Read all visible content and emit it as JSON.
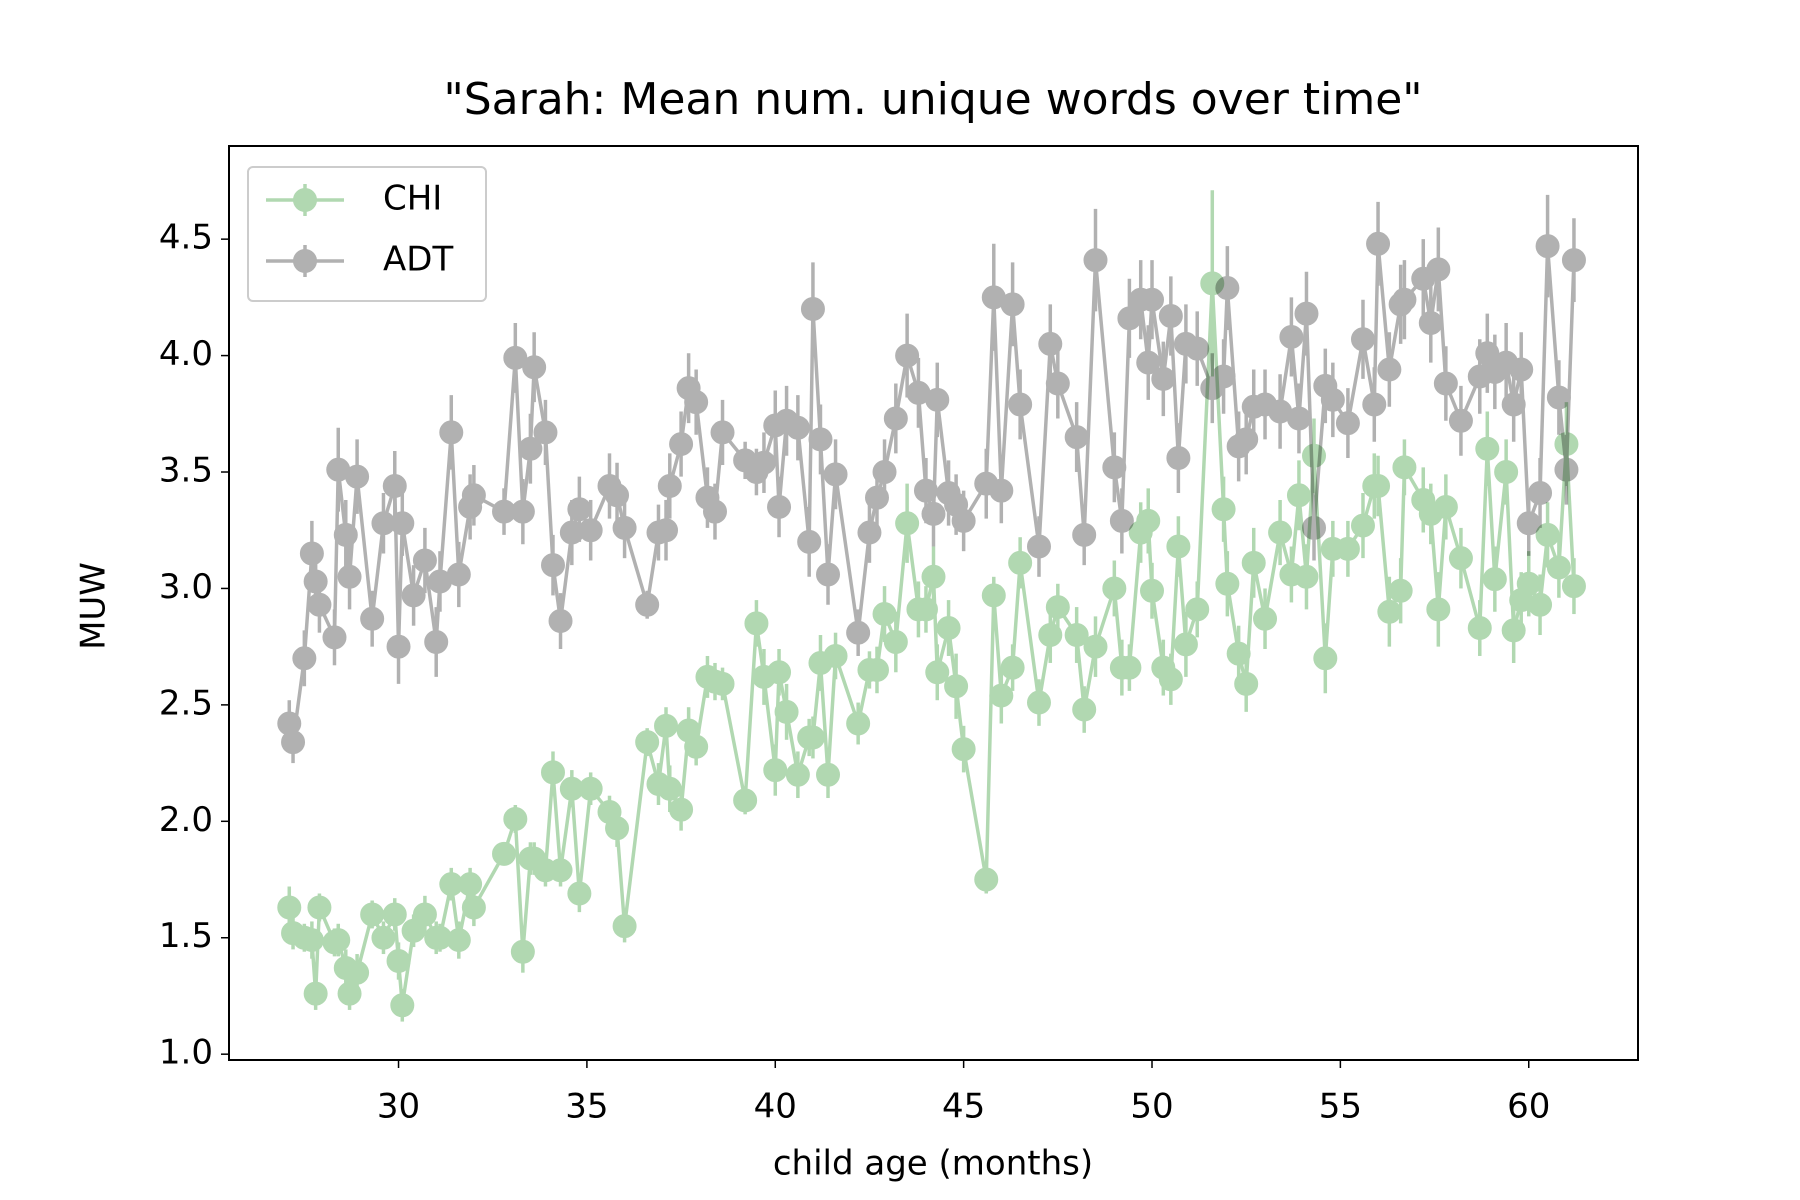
{
  "chart_data": {
    "type": "errorbar-line",
    "title": "\"Sarah: Mean num. unique words over time\"",
    "xlabel": "child age (months)",
    "ylabel": "MUW",
    "xlim": [
      25.5,
      62.9
    ],
    "ylim": [
      0.975,
      4.9
    ],
    "xticks": [
      30,
      35,
      40,
      45,
      50,
      55,
      60
    ],
    "yticks": [
      {
        "value": 1,
        "label": "1.0"
      },
      1.5,
      {
        "value": 2,
        "label": "2.0"
      },
      2.5,
      {
        "value": 3,
        "label": "3.0"
      },
      3.5,
      {
        "value": 4,
        "label": "4.0"
      },
      4.5
    ],
    "legend": "upper left",
    "alpha": 0.3,
    "x": [
      27.1,
      27.2,
      27.5,
      27.7,
      27.8,
      27.9,
      28.3,
      28.4,
      28.6,
      28.7,
      28.9,
      29.3,
      29.6,
      29.9,
      30.0,
      30.1,
      30.4,
      30.7,
      31.0,
      31.1,
      31.4,
      31.6,
      31.9,
      32.0,
      32.8,
      33.1,
      33.3,
      33.5,
      33.6,
      33.9,
      34.1,
      34.3,
      34.6,
      34.8,
      35.1,
      35.6,
      35.8,
      36.0,
      36.6,
      36.9,
      37.1,
      37.2,
      37.5,
      37.7,
      37.9,
      38.2,
      38.4,
      38.6,
      39.2,
      39.5,
      39.7,
      40.0,
      40.1,
      40.3,
      40.6,
      40.9,
      41.0,
      41.2,
      41.4,
      41.6,
      42.2,
      42.5,
      42.7,
      42.9,
      43.2,
      43.5,
      43.8,
      44.0,
      44.2,
      44.3,
      44.6,
      44.8,
      45.0,
      45.6,
      45.8,
      46.0,
      46.3,
      46.5,
      47.0,
      47.3,
      47.5,
      48.0,
      48.2,
      48.5,
      49.0,
      49.2,
      49.4,
      49.7,
      49.9,
      50.0,
      50.3,
      50.5,
      50.7,
      50.9,
      51.2,
      51.6,
      51.9,
      52.0,
      52.3,
      52.5,
      52.7,
      53.0,
      53.4,
      53.7,
      53.9,
      54.1,
      54.3,
      54.6,
      54.8,
      55.2,
      55.6,
      55.9,
      56.0,
      56.3,
      56.6,
      56.7,
      57.2,
      57.4,
      57.6,
      57.8,
      58.2,
      58.7,
      58.9,
      59.1,
      59.4,
      59.6,
      59.8,
      60.0,
      60.3,
      60.5,
      60.8,
      61.0,
      61.2
    ],
    "series": [
      {
        "name": "CHI",
        "color": "green",
        "values": [
          1.63,
          1.52,
          1.5,
          1.49,
          1.26,
          1.63,
          1.48,
          1.49,
          1.37,
          1.26,
          1.35,
          1.6,
          1.5,
          1.6,
          1.4,
          1.21,
          1.53,
          1.6,
          1.5,
          1.5,
          1.73,
          1.49,
          1.73,
          1.63,
          1.86,
          2.01,
          1.44,
          1.84,
          1.84,
          1.79,
          2.21,
          1.79,
          2.14,
          1.69,
          2.14,
          2.04,
          1.97,
          1.55,
          2.34,
          2.16,
          2.41,
          2.14,
          2.05,
          2.39,
          2.32,
          2.62,
          2.6,
          2.59,
          2.09,
          2.85,
          2.62,
          2.22,
          2.64,
          2.47,
          2.2,
          2.36,
          2.36,
          2.68,
          2.2,
          2.71,
          2.42,
          2.65,
          2.65,
          2.89,
          2.77,
          3.28,
          2.91,
          2.91,
          3.05,
          2.64,
          2.83,
          2.58,
          2.31,
          1.75,
          2.97,
          2.54,
          2.66,
          3.11,
          2.51,
          2.8,
          2.92,
          2.8,
          2.48,
          2.75,
          3.0,
          2.66,
          2.66,
          3.24,
          3.29,
          2.99,
          2.66,
          2.61,
          3.18,
          2.76,
          2.91,
          4.31,
          3.34,
          3.02,
          2.72,
          2.59,
          3.11,
          2.87,
          3.24,
          3.06,
          3.4,
          3.05,
          3.57,
          2.7,
          3.17,
          3.17,
          3.27,
          3.44,
          3.44,
          2.9,
          2.99,
          3.52,
          3.38,
          3.32,
          2.91,
          3.35,
          3.13,
          2.83,
          3.6,
          3.04,
          3.5,
          2.82,
          2.95,
          3.02,
          2.93,
          3.23,
          3.09,
          3.62,
          3.01
        ],
        "errors": [
          0.09,
          0.07,
          0.06,
          0.08,
          0.07,
          0.06,
          0.06,
          0.07,
          0.08,
          0.07,
          0.08,
          0.06,
          0.07,
          0.07,
          0.08,
          0.07,
          0.07,
          0.08,
          0.07,
          0.06,
          0.07,
          0.08,
          0.07,
          0.08,
          0.05,
          0.06,
          0.09,
          0.07,
          0.07,
          0.07,
          0.09,
          0.07,
          0.08,
          0.08,
          0.07,
          0.07,
          0.08,
          0.07,
          0.06,
          0.09,
          0.08,
          0.1,
          0.09,
          0.1,
          0.08,
          0.09,
          0.08,
          0.07,
          0.06,
          0.1,
          0.12,
          0.11,
          0.1,
          0.12,
          0.1,
          0.08,
          0.09,
          0.12,
          0.1,
          0.1,
          0.09,
          0.08,
          0.1,
          0.12,
          0.13,
          0.17,
          0.12,
          0.1,
          0.13,
          0.12,
          0.12,
          0.14,
          0.1,
          0.06,
          0.08,
          0.12,
          0.1,
          0.11,
          0.1,
          0.12,
          0.1,
          0.12,
          0.1,
          0.13,
          0.12,
          0.12,
          0.1,
          0.13,
          0.14,
          0.12,
          0.12,
          0.11,
          0.13,
          0.14,
          0.12,
          0.4,
          0.14,
          0.14,
          0.12,
          0.12,
          0.15,
          0.13,
          0.14,
          0.12,
          0.15,
          0.14,
          0.16,
          0.15,
          0.12,
          0.12,
          0.14,
          0.14,
          0.13,
          0.15,
          0.14,
          0.12,
          0.14,
          0.13,
          0.16,
          0.14,
          0.13,
          0.12,
          0.16,
          0.14,
          0.14,
          0.14,
          0.12,
          0.14,
          0.13,
          0.14,
          0.13,
          0.18,
          0.12
        ]
      },
      {
        "name": "ADT",
        "color": "black",
        "values": [
          2.42,
          2.34,
          2.7,
          3.15,
          3.03,
          2.93,
          2.79,
          3.51,
          3.23,
          3.05,
          3.48,
          2.87,
          3.28,
          3.44,
          2.75,
          3.28,
          2.97,
          3.12,
          2.77,
          3.03,
          3.67,
          3.06,
          3.35,
          3.4,
          3.33,
          3.99,
          3.33,
          3.6,
          3.95,
          3.67,
          3.1,
          2.86,
          3.24,
          3.34,
          3.25,
          3.44,
          3.4,
          3.26,
          2.93,
          3.24,
          3.25,
          3.44,
          3.62,
          3.86,
          3.8,
          3.39,
          3.33,
          3.67,
          3.55,
          3.5,
          3.54,
          3.7,
          3.35,
          3.72,
          3.69,
          3.2,
          4.2,
          3.64,
          3.06,
          3.49,
          2.81,
          3.24,
          3.39,
          3.5,
          3.73,
          4.0,
          3.84,
          3.42,
          3.32,
          3.81,
          3.41,
          3.36,
          3.29,
          3.45,
          4.25,
          3.42,
          4.22,
          3.79,
          3.18,
          4.05,
          3.88,
          3.65,
          3.23,
          4.41,
          3.52,
          3.29,
          4.16,
          4.24,
          3.97,
          4.24,
          3.9,
          4.17,
          3.56,
          4.05,
          4.03,
          3.86,
          3.91,
          4.29,
          3.61,
          3.64,
          3.78,
          3.79,
          3.76,
          4.08,
          3.73,
          4.18,
          3.26,
          3.87,
          3.81,
          3.71,
          4.07,
          3.79,
          4.48,
          3.94,
          4.22,
          4.24,
          4.33,
          4.14,
          4.37,
          3.88,
          3.72,
          3.91,
          4.01,
          3.93,
          3.97,
          3.79,
          3.94,
          3.28,
          3.41,
          4.47,
          3.82,
          3.51,
          4.41
        ],
        "errors": [
          0.1,
          0.09,
          0.12,
          0.14,
          0.13,
          0.12,
          0.12,
          0.18,
          0.15,
          0.14,
          0.16,
          0.12,
          0.13,
          0.15,
          0.16,
          0.14,
          0.13,
          0.14,
          0.15,
          0.13,
          0.16,
          0.14,
          0.14,
          0.13,
          0.1,
          0.15,
          0.14,
          0.15,
          0.15,
          0.14,
          0.13,
          0.12,
          0.14,
          0.14,
          0.13,
          0.14,
          0.14,
          0.13,
          0.06,
          0.12,
          0.13,
          0.14,
          0.14,
          0.15,
          0.14,
          0.13,
          0.12,
          0.14,
          0.08,
          0.1,
          0.13,
          0.15,
          0.13,
          0.15,
          0.14,
          0.15,
          0.2,
          0.15,
          0.13,
          0.15,
          0.1,
          0.13,
          0.13,
          0.14,
          0.15,
          0.18,
          0.15,
          0.14,
          0.14,
          0.16,
          0.14,
          0.13,
          0.13,
          0.15,
          0.23,
          0.14,
          0.18,
          0.15,
          0.13,
          0.17,
          0.15,
          0.15,
          0.13,
          0.22,
          0.15,
          0.14,
          0.17,
          0.17,
          0.16,
          0.17,
          0.16,
          0.17,
          0.15,
          0.17,
          0.16,
          0.15,
          0.16,
          0.18,
          0.15,
          0.15,
          0.16,
          0.15,
          0.16,
          0.17,
          0.15,
          0.18,
          0.14,
          0.16,
          0.16,
          0.15,
          0.17,
          0.16,
          0.18,
          0.16,
          0.17,
          0.17,
          0.17,
          0.17,
          0.18,
          0.16,
          0.15,
          0.16,
          0.17,
          0.16,
          0.17,
          0.16,
          0.16,
          0.14,
          0.15,
          0.22,
          0.16,
          0.15,
          0.18
        ]
      }
    ]
  }
}
